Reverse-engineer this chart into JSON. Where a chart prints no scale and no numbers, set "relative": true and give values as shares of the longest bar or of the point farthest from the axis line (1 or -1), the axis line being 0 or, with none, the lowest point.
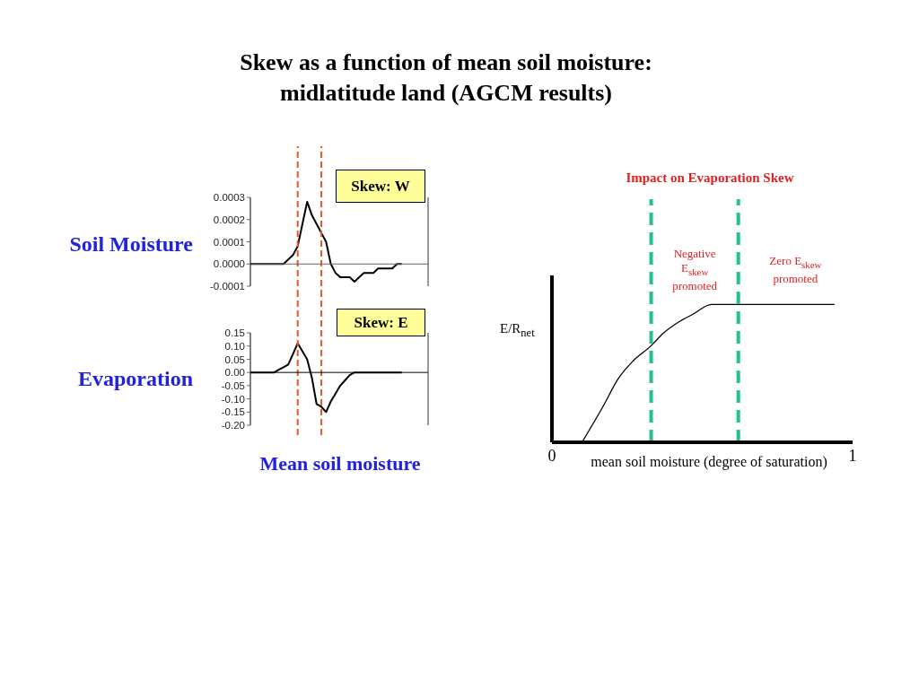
{
  "chart_data": [
    {
      "type": "line",
      "title": "Skew as a function of mean soil moisture:\nmidlatitude land (AGCM results)",
      "ylabel": "Soil Moisture",
      "annotations": [
        "Skew: W"
      ],
      "categories": [
        null,
        null,
        null,
        null,
        null,
        null,
        null,
        null,
        null,
        null,
        null,
        null,
        null,
        null,
        null,
        null,
        null,
        null,
        null,
        null,
        null,
        null,
        null,
        null,
        null,
        null,
        null,
        null,
        null,
        null,
        null,
        null,
        null,
        null,
        null,
        null,
        null,
        null
      ],
      "values": [
        0,
        0,
        0,
        0,
        0,
        0,
        0,
        0,
        2e-05,
        4e-05,
        8e-05,
        0.00018,
        0.00028,
        0.00022,
        0.00018,
        0.00014,
        0.0001,
        0,
        -4e-05,
        -6e-05,
        -6e-05,
        -6e-05,
        -8e-05,
        -6e-05,
        -4e-05,
        -4e-05,
        -4e-05,
        -2e-05,
        -2e-05,
        -2e-05,
        -2e-05,
        0,
        0,
        null,
        null,
        null,
        null,
        null
      ],
      "color": "#000000",
      "ylim": [
        -0.0001,
        0.0003
      ],
      "yticks": [
        -0.0001,
        {
          "value": 0,
          "label": "0.0000"
        },
        0.0001,
        0.0002,
        0.0003
      ],
      "ref_lines": [
        {
          "axis": "y",
          "value": 0,
          "color": "#666666"
        }
      ]
    },
    {
      "type": "line",
      "ylabel": "Evaporation",
      "xlabel": "Mean soil moisture",
      "annotations": [
        "Skew: E"
      ],
      "categories": [
        null,
        null,
        null,
        null,
        null,
        null,
        null,
        null,
        null,
        null,
        null,
        null,
        null,
        null,
        null,
        null,
        null,
        null,
        null,
        null,
        null,
        null,
        null,
        null,
        null,
        null,
        null,
        null,
        null,
        null,
        null,
        null,
        null,
        null,
        null,
        null,
        null,
        null
      ],
      "values": [
        0,
        0,
        0,
        0,
        0,
        0,
        0.01,
        0.02,
        0.03,
        0.07,
        0.11,
        0.08,
        0.05,
        -0.02,
        -0.12,
        -0.13,
        -0.15,
        -0.11,
        -0.08,
        -0.05,
        -0.03,
        -0.01,
        0,
        0,
        0,
        0,
        0,
        0,
        0,
        0,
        0,
        0,
        0,
        null,
        null,
        null,
        null,
        null
      ],
      "color": "#000000",
      "ylim": [
        -0.2,
        0.15
      ],
      "yticks": [
        {
          "value": -0.2,
          "label": "-0.20"
        },
        -0.15,
        {
          "value": -0.1,
          "label": "-0.10"
        },
        -0.05,
        {
          "value": 0,
          "label": "0.00"
        },
        0.05,
        {
          "value": 0.1,
          "label": "0.10"
        },
        0.15
      ],
      "ref_lines": [
        {
          "axis": "y",
          "value": 0,
          "color": "#000000"
        }
      ]
    },
    {
      "type": "line",
      "title": "Impact on Evaporation Skew",
      "xlabel": "mean soil moisture (degree of saturation)",
      "ylabel": "E/R$_{net}$",
      "x": [
        0.1,
        0.17,
        0.22,
        0.27,
        0.33,
        0.37,
        0.42,
        0.47,
        0.53,
        0.94
      ],
      "values": [
        0,
        0.26,
        0.46,
        0.59,
        0.7,
        0.79,
        0.87,
        0.93,
        1,
        1
      ],
      "color": "#000000",
      "relative": true,
      "xlim": [
        0,
        1
      ],
      "xticks": [
        0,
        1
      ],
      "ref_lines": [
        {
          "axis": "x",
          "value": 0.33,
          "label": "Negative\nE$_{skew}$\npromoted",
          "color": "#22c28a",
          "line_style": "dashed"
        },
        {
          "axis": "x",
          "value": 0.62,
          "label": "Zero E$_{skew}$\npromoted",
          "color": "#22c28a",
          "line_style": "dashed"
        }
      ]
    }
  ]
}
